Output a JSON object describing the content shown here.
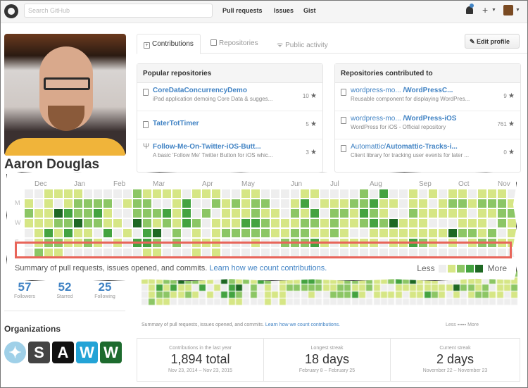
{
  "header": {
    "search_placeholder": "Search GitHub",
    "nav": [
      "Pull requests",
      "Issues",
      "Gist"
    ],
    "icons": [
      "github-logo",
      "notifications-bell-icon",
      "plus-icon",
      "user-avatar-menu"
    ]
  },
  "profile": {
    "name": "Aaron Douglas",
    "stats": [
      {
        "value": "57",
        "label": "Followers"
      },
      {
        "value": "52",
        "label": "Starred"
      },
      {
        "value": "25",
        "label": "Following"
      }
    ],
    "organizations_title": "Organizations",
    "organizations": [
      {
        "glyph": "✦",
        "bg": "#9fd0e8"
      },
      {
        "glyph": "S",
        "bg": "#444444"
      },
      {
        "glyph": "A",
        "bg": "#111111"
      },
      {
        "glyph": "W",
        "bg": "#23a3d6"
      },
      {
        "glyph": "W",
        "bg": "#1d6b2e"
      }
    ]
  },
  "tabs": [
    {
      "label": "Contributions",
      "active": true
    },
    {
      "label": "Repositories",
      "active": false
    },
    {
      "label": "Public activity",
      "active": false
    }
  ],
  "edit_profile_label": "✎ Edit profile",
  "popular_repos": {
    "title": "Popular repositories",
    "items": [
      {
        "name": "CoreDataConcurrencyDemo",
        "desc": "iPad application demoing Core Data & sugges...",
        "stars": "10",
        "icon": "repo"
      },
      {
        "name": "TaterTotTimer",
        "desc": "",
        "stars": "5",
        "icon": "repo"
      },
      {
        "name": "Follow-Me-On-Twitter-iOS-Butt...",
        "desc": "A basic 'Follow Me' Twitter Button for iOS whic...",
        "stars": "3",
        "icon": "fork"
      }
    ]
  },
  "contributed_repos": {
    "title": "Repositories contributed to",
    "items": [
      {
        "owner": "wordpress-mo...",
        "name": "/WordPressC...",
        "desc": "Reusable component for displaying WordPres...",
        "stars": "9"
      },
      {
        "owner": "wordpress-mo...",
        "name": "/WordPress-iOS",
        "desc": "WordPress for iOS - Official repository",
        "stars": "761"
      },
      {
        "owner": "Automattic/",
        "name": "Automattic-Tracks-i...",
        "desc": "Client library for tracking user events for later ...",
        "stars": "0"
      }
    ]
  },
  "contributions": {
    "months": [
      {
        "label": "Dec",
        "col": 1
      },
      {
        "label": "Jan",
        "col": 5
      },
      {
        "label": "Feb",
        "col": 9
      },
      {
        "label": "Mar",
        "col": 13
      },
      {
        "label": "Apr",
        "col": 18
      },
      {
        "label": "May",
        "col": 22
      },
      {
        "label": "Jun",
        "col": 27
      },
      {
        "label": "Jul",
        "col": 31
      },
      {
        "label": "Aug",
        "col": 35
      },
      {
        "label": "Sep",
        "col": 40
      },
      {
        "label": "Oct",
        "col": 44
      },
      {
        "label": "Nov",
        "col": 48
      }
    ],
    "day_labels": [
      {
        "label": "M",
        "row": 1
      },
      {
        "label": "W",
        "row": 3
      },
      {
        "label": "F",
        "row": 5
      }
    ],
    "caption": "Summary of pull requests, issues opened, and commits.",
    "caption_link": "Learn how we count contributions.",
    "legend_less": "Less",
    "legend_more": "More",
    "colors": [
      "#eeeeee",
      "#d6e685",
      "#8cc665",
      "#44a340",
      "#1e6823"
    ],
    "grid": [
      "00111100000211110111001100001100002030010101101110110123",
      "10101222201220013002121220013011122311011012212221011011",
      "21143223100222313020111211021302213210021111101122322",
      "1112242211042121320111332111221211232411100011102111",
      "01313110301034020101222221122112100111111114221201122330",
      "01221121010332020111000100222310111101132101012211012410",
      "02110000000011000101000000000000000000000000000000000"
    ]
  },
  "summary": {
    "boxes": [
      {
        "title": "Contributions in the last year",
        "value": "1,894 total",
        "range": "Nov 23, 2014 – Nov 23, 2015"
      },
      {
        "title": "Longest streak",
        "value": "18 days",
        "range": "February 8 – February 25"
      },
      {
        "title": "Current streak",
        "value": "2 days",
        "range": "November 22 – November 23"
      }
    ]
  }
}
